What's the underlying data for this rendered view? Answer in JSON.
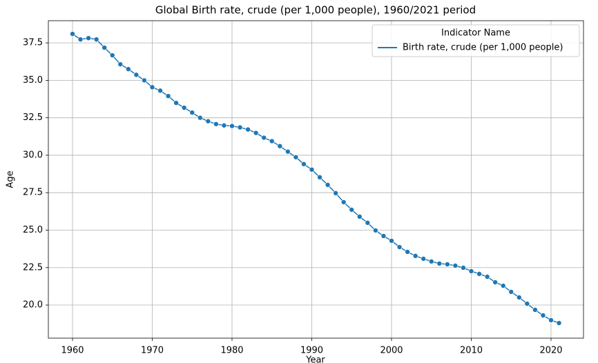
{
  "chart_data": {
    "type": "line",
    "title": "Global Birth rate, crude (per 1,000 people), 1960/2021 period",
    "x_label": "Year",
    "y_label": "Age",
    "x": [
      1960,
      1961,
      1962,
      1963,
      1964,
      1965,
      1966,
      1967,
      1968,
      1969,
      1970,
      1971,
      1972,
      1973,
      1974,
      1975,
      1976,
      1977,
      1978,
      1979,
      1980,
      1981,
      1982,
      1983,
      1984,
      1985,
      1986,
      1987,
      1988,
      1989,
      1990,
      1991,
      1992,
      1993,
      1994,
      1995,
      1996,
      1997,
      1998,
      1999,
      2000,
      2001,
      2002,
      2003,
      2004,
      2005,
      2006,
      2007,
      2008,
      2009,
      2010,
      2011,
      2012,
      2013,
      2014,
      2015,
      2016,
      2017,
      2018,
      2019,
      2020,
      2021
    ],
    "series": [
      {
        "name": "Birth rate, crude (per 1,000 people)",
        "color": "#1f77b4",
        "values": [
          38.1,
          37.73,
          37.82,
          37.73,
          37.18,
          36.67,
          36.07,
          35.75,
          35.37,
          35.0,
          34.54,
          34.31,
          33.95,
          33.49,
          33.17,
          32.85,
          32.5,
          32.27,
          32.08,
          31.99,
          31.95,
          31.86,
          31.72,
          31.49,
          31.17,
          30.94,
          30.61,
          30.24,
          29.87,
          29.41,
          29.04,
          28.53,
          28.02,
          27.47,
          26.87,
          26.36,
          25.9,
          25.49,
          24.98,
          24.61,
          24.29,
          23.87,
          23.55,
          23.28,
          23.09,
          22.91,
          22.77,
          22.72,
          22.63,
          22.49,
          22.26,
          22.08,
          21.89,
          21.52,
          21.29,
          20.88,
          20.51,
          20.09,
          19.68,
          19.31,
          18.99,
          18.8
        ]
      }
    ],
    "legend_title": "Indicator Name",
    "legend_position": "upper right",
    "marker": "circle",
    "grid": true,
    "xlim": [
      1956.97,
      2024.07
    ],
    "xticks": [
      1960,
      1970,
      1980,
      1990,
      2000,
      2010,
      2020
    ],
    "ylim": [
      17.79,
      38.98
    ],
    "yticks": [
      {
        "value": 20,
        "label": "20.0"
      },
      {
        "value": 22.5,
        "label": "22.5"
      },
      {
        "value": 25,
        "label": "25.0"
      },
      {
        "value": 27.5,
        "label": "27.5"
      },
      {
        "value": 30,
        "label": "30.0"
      },
      {
        "value": 32.5,
        "label": "32.5"
      },
      {
        "value": 35,
        "label": "35.0"
      },
      {
        "value": 37.5,
        "label": "37.5"
      }
    ]
  }
}
